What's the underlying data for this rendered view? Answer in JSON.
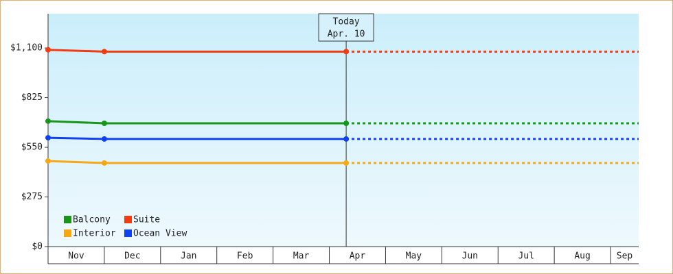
{
  "chart_data": {
    "type": "line",
    "months": [
      "Nov",
      "Dec",
      "Jan",
      "Feb",
      "Mar",
      "Apr",
      "May",
      "Jun",
      "Jul",
      "Aug",
      "Sep"
    ],
    "x": [
      0,
      1,
      5.3
    ],
    "xlim": [
      0,
      10.5
    ],
    "ylim": [
      0,
      1290
    ],
    "yticks": [
      {
        "value": 0,
        "label": "$0"
      },
      {
        "value": 275,
        "label": "$275"
      },
      {
        "value": 550,
        "label": "$550"
      },
      {
        "value": 825,
        "label": "$825"
      },
      {
        "value": 1100,
        "label": "$1,100"
      }
    ],
    "today": {
      "x": 5.3,
      "label": [
        "Today",
        "Apr. 10"
      ]
    },
    "legend": "lower left",
    "series": [
      {
        "name": "Balcony",
        "color": "#17961a",
        "values": [
          695,
          683,
          683
        ]
      },
      {
        "name": "Suite",
        "color": "#f03c10",
        "values": [
          1090,
          1080,
          1080
        ]
      },
      {
        "name": "Interior",
        "color": "#f5a812",
        "values": [
          474,
          463,
          463
        ]
      },
      {
        "name": "Ocean View",
        "color": "#1040f0",
        "values": [
          603,
          596,
          596
        ]
      }
    ]
  }
}
